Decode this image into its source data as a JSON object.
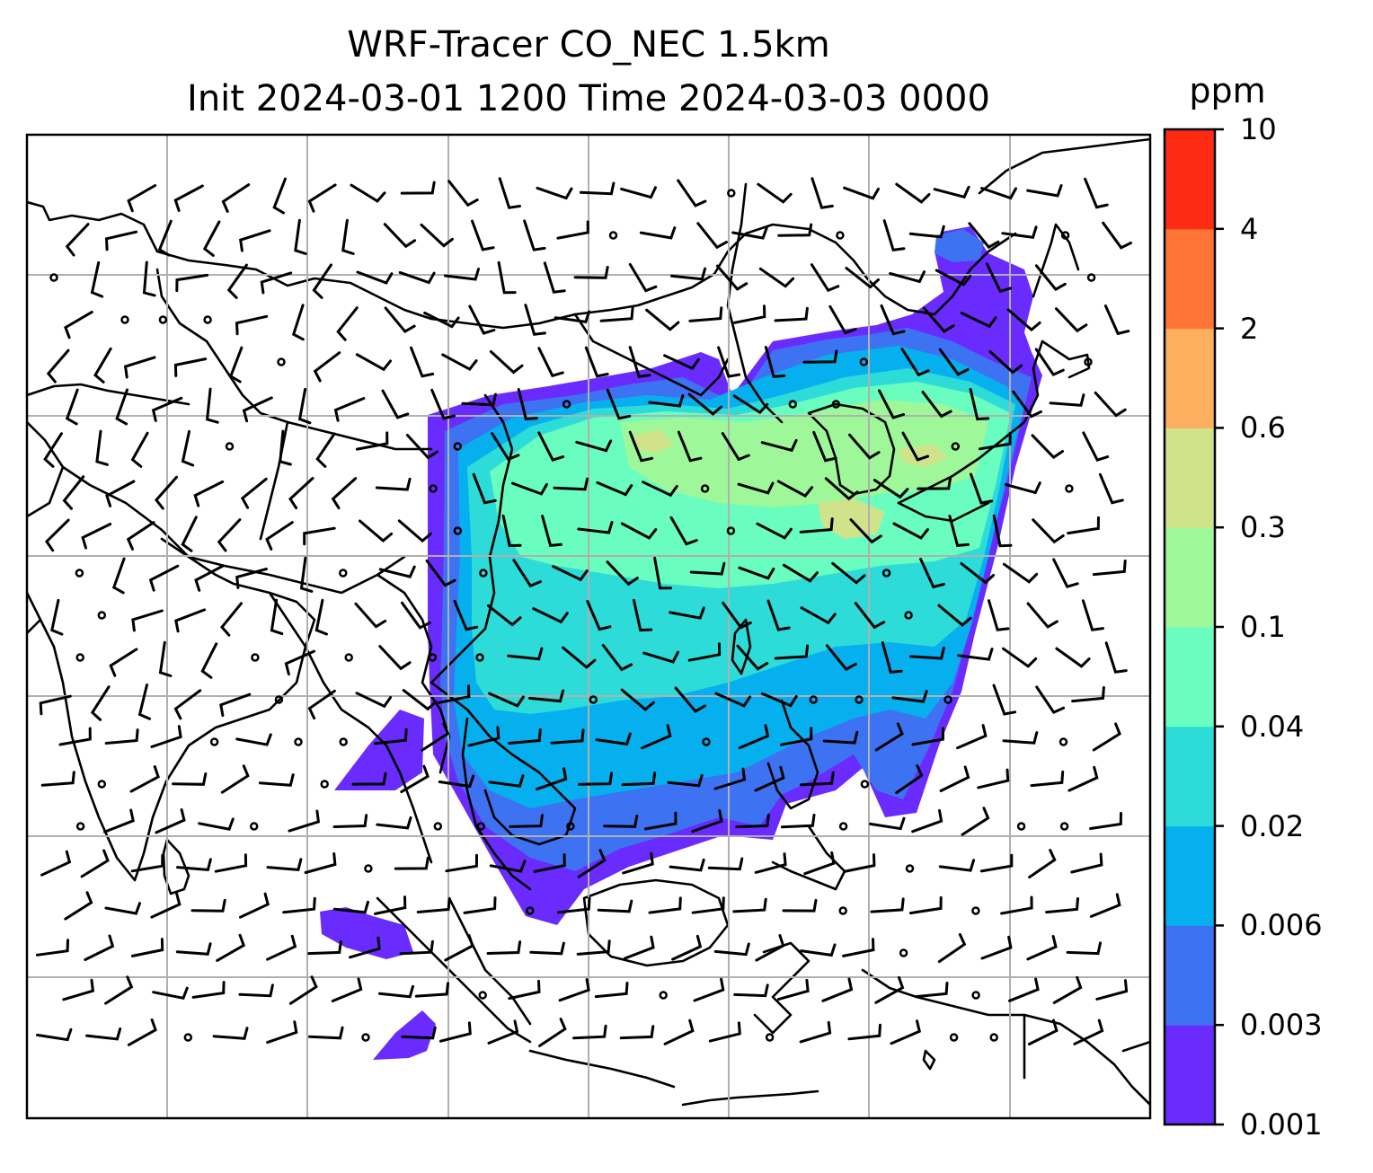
{
  "title": {
    "line1": "WRF-Tracer CO_NEC 1.5km",
    "line2": "Init 2024-03-01 1200 Time 2024-03-03 0000"
  },
  "colorbar": {
    "unit": "ppm",
    "levels": [
      "0.001",
      "0.003",
      "0.006",
      "0.02",
      "0.04",
      "0.1",
      "0.3",
      "0.6",
      "2",
      "4",
      "10"
    ],
    "colors": [
      "#6a2bff",
      "#3d73f2",
      "#06b0ee",
      "#2ddcd8",
      "#6afdc0",
      "#9ef89a",
      "#d0e38a",
      "#fdae5f",
      "#fe7437",
      "#ff2a14"
    ]
  },
  "map": {
    "gridlines": true,
    "coastline_color": "#000000",
    "grid_color": "#b0b0b0",
    "wind_barbs": true
  }
}
